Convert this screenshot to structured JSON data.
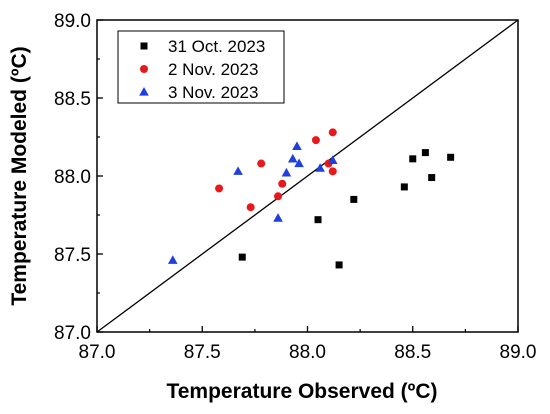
{
  "chart_data": {
    "type": "scatter",
    "xlabel": "Temperature Observed (ºC)",
    "ylabel": "Temperature Modeled (ºC)",
    "xlim": [
      87.0,
      89.0
    ],
    "ylim": [
      87.0,
      89.0
    ],
    "x_ticks": [
      "87.0",
      "87.5",
      "88.0",
      "88.5",
      "89.0"
    ],
    "y_ticks": [
      "87.0",
      "87.5",
      "88.0",
      "88.5",
      "89.0"
    ],
    "grid": false,
    "legend_position": "top-left",
    "reference_line": [
      [
        87.0,
        87.0
      ],
      [
        89.0,
        89.0
      ]
    ],
    "series": [
      {
        "name": "31 Oct. 2023",
        "marker": "square",
        "color": "#000000",
        "points": [
          [
            87.69,
            87.48
          ],
          [
            88.05,
            87.72
          ],
          [
            88.15,
            87.43
          ],
          [
            88.22,
            87.85
          ],
          [
            88.46,
            87.93
          ],
          [
            88.5,
            88.11
          ],
          [
            88.56,
            88.15
          ],
          [
            88.59,
            87.99
          ],
          [
            88.68,
            88.12
          ]
        ]
      },
      {
        "name": "2 Nov. 2023",
        "marker": "circle",
        "color": "#e8191a",
        "points": [
          [
            87.58,
            87.92
          ],
          [
            87.73,
            87.8
          ],
          [
            87.78,
            88.08
          ],
          [
            87.86,
            87.87
          ],
          [
            87.88,
            87.95
          ],
          [
            88.04,
            88.23
          ],
          [
            88.1,
            88.08
          ],
          [
            88.12,
            88.03
          ],
          [
            88.12,
            88.28
          ]
        ]
      },
      {
        "name": "3 Nov. 2023",
        "marker": "triangle",
        "color": "#1f3fe0",
        "points": [
          [
            87.36,
            87.46
          ],
          [
            87.67,
            88.03
          ],
          [
            87.86,
            87.73
          ],
          [
            87.9,
            88.02
          ],
          [
            87.93,
            88.11
          ],
          [
            87.95,
            88.19
          ],
          [
            87.96,
            88.08
          ],
          [
            88.06,
            88.05
          ],
          [
            88.12,
            88.1
          ]
        ]
      }
    ]
  }
}
